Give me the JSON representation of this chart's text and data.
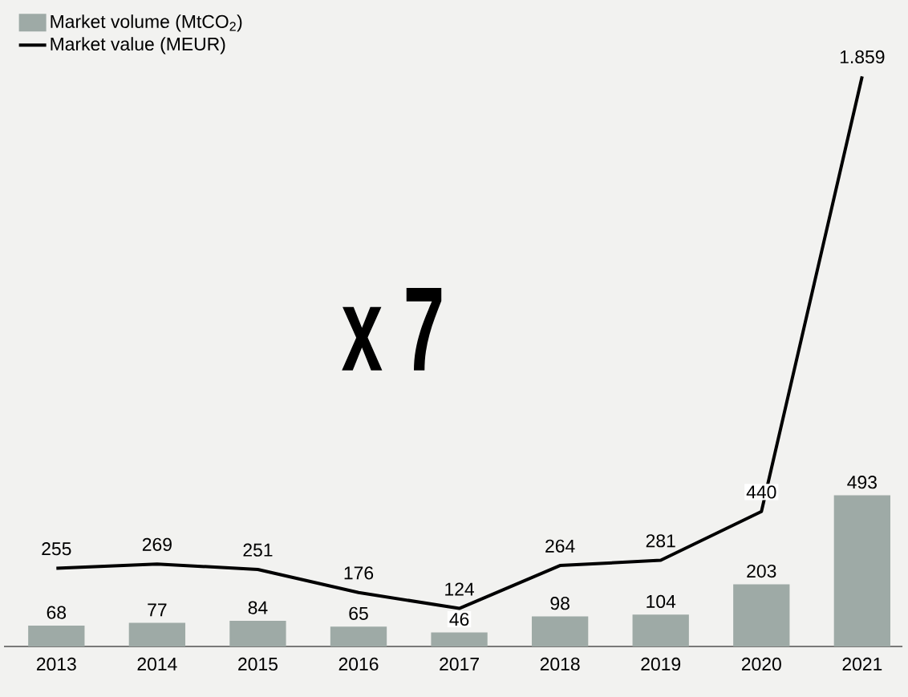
{
  "chart_data": {
    "type": "bar",
    "categories": [
      "2013",
      "2014",
      "2015",
      "2016",
      "2017",
      "2018",
      "2019",
      "2020",
      "2021"
    ],
    "tick_labels": "x",
    "legend": "top left",
    "annotations": [
      "x 7"
    ],
    "series": [
      {
        "name": "Market volume (MtCO$_{2}$)",
        "color": "#9eaaa6",
        "values": [
          68,
          77,
          84,
          65,
          46,
          98,
          104,
          203,
          493
        ],
        "value_labels": [
          "68",
          "77",
          "84",
          "65",
          "46",
          "98",
          "104",
          "203",
          "493"
        ]
      },
      {
        "name": "Market value (MEUR)",
        "type": "line",
        "color": "#000000",
        "values": [
          255,
          269,
          251,
          176,
          124,
          264,
          281,
          440,
          1859
        ],
        "value_labels": [
          "255",
          "269",
          "251",
          "176",
          "124",
          "264",
          "281",
          "440",
          "1.859"
        ]
      }
    ]
  }
}
